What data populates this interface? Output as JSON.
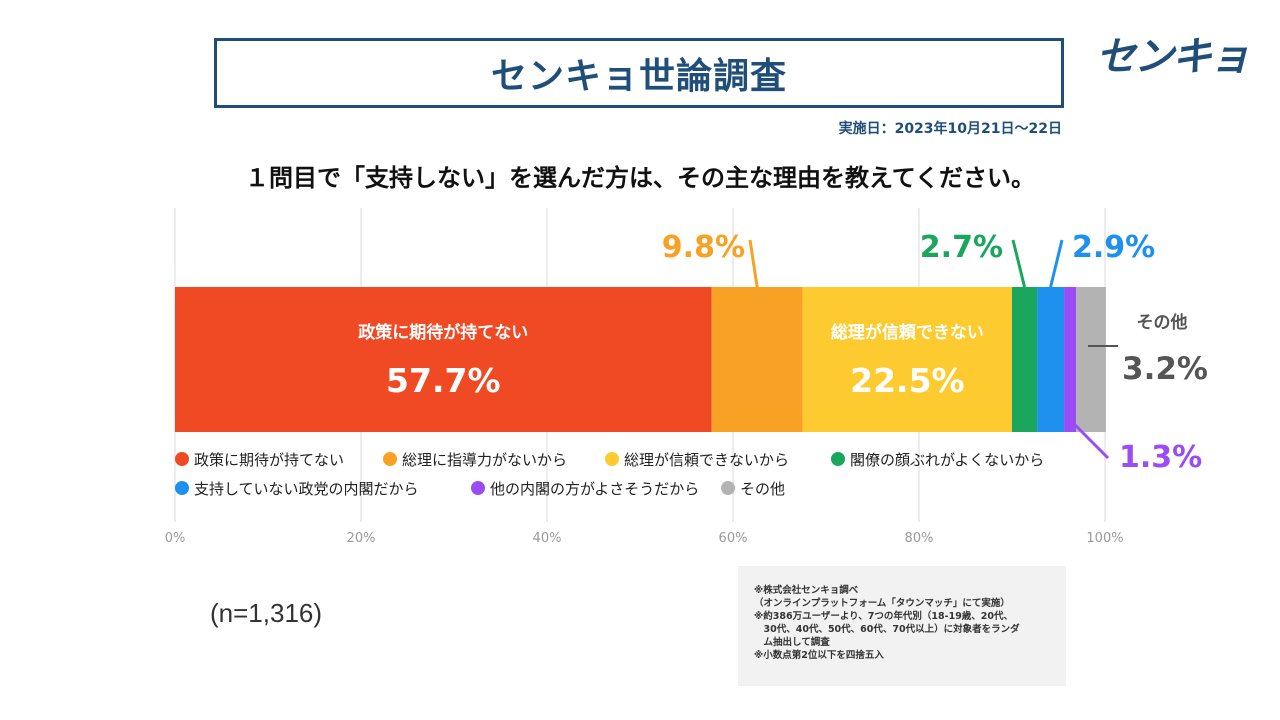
{
  "header": {
    "title": "センキョ世論調査",
    "logo": "センキョ",
    "date": "実施日：2023年10月21日～22日",
    "question": "１問目で「支持しない」を選んだ方は、その主な理由を教えてください。"
  },
  "chart_data": {
    "type": "bar",
    "orientation": "horizontal-stacked-100",
    "xlim": [
      0,
      100
    ],
    "x_ticks": [
      "0%",
      "20%",
      "40%",
      "60%",
      "80%",
      "100%"
    ],
    "grid": true,
    "legend_position": "below-bar",
    "series": [
      {
        "name": "政策に期待が持てない",
        "value": 57.7,
        "label": "57.7%",
        "inner_name": "政策に期待が持てない",
        "color": "#ef4a23"
      },
      {
        "name": "総理に指導力がないから",
        "value": 9.8,
        "label": "9.8%",
        "inner_name": "",
        "color": "#f9a125"
      },
      {
        "name": "総理が信頼できないから",
        "value": 22.5,
        "label": "22.5%",
        "inner_name": "総理が信頼できない",
        "color": "#fdcb2f"
      },
      {
        "name": "閣僚の顔ぶれがよくないから",
        "value": 2.7,
        "label": "2.7%",
        "inner_name": "",
        "color": "#1aa65c"
      },
      {
        "name": "支持していない政党の内閣だから",
        "value": 2.9,
        "label": "2.9%",
        "inner_name": "",
        "color": "#1e90f0"
      },
      {
        "name": "他の内閣の方がよさそうだから",
        "value": 1.3,
        "label": "1.3%",
        "inner_name": "",
        "color": "#9a4cf5"
      },
      {
        "name": "その他",
        "value": 3.2,
        "label": "3.2%",
        "inner_name": "その他",
        "color": "#b3b3b3"
      }
    ]
  },
  "sample": "(n=1,316)",
  "notes": [
    "※株式会社センキョ調べ",
    "（オンラインプラットフォーム「タウンマッチ」にて実施）",
    "※約386万ユーザーより、7つの年代別（18-19歳、20代、",
    "　30代、40代、50代、60代、70代以上）に対象者をランダ",
    "　ム抽出して調査",
    "※小数点第2位以下を四捨五入"
  ]
}
